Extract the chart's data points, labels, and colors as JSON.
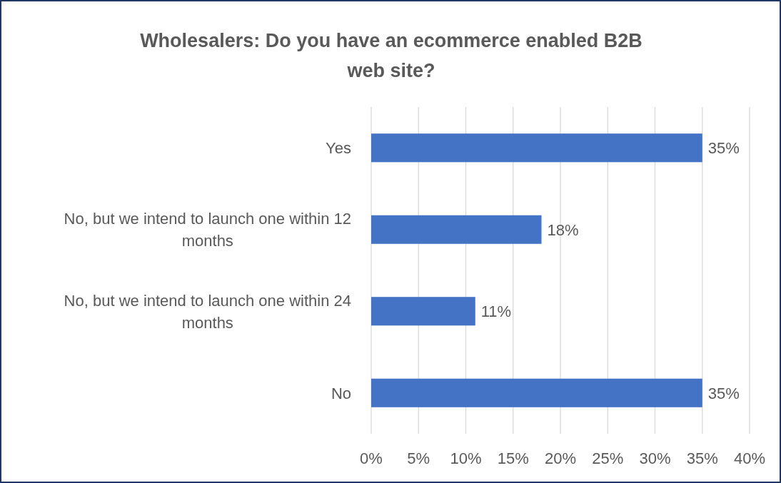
{
  "chart_data": {
    "type": "bar",
    "orientation": "horizontal",
    "title": "Wholesalers: Do you have an ecommerce enabled B2B web site?",
    "categories": [
      "Yes",
      "No, but we intend to launch one within 12 months",
      "No, but we intend to launch one within 24 months",
      "No"
    ],
    "values": [
      35,
      18,
      11,
      35
    ],
    "value_labels": [
      "35%",
      "18%",
      "11%",
      "35%"
    ],
    "color": "#4472c4",
    "xlim": [
      0,
      40
    ],
    "xticks": [
      {
        "value": 0,
        "label": "0%"
      },
      {
        "value": 5,
        "label": "5%"
      },
      {
        "value": 10,
        "label": "10%"
      },
      {
        "value": 15,
        "label": "15%"
      },
      {
        "value": 20,
        "label": "20%"
      },
      {
        "value": 25,
        "label": "25%"
      },
      {
        "value": 30,
        "label": "30%"
      },
      {
        "value": 35,
        "label": "35%"
      },
      {
        "value": 40,
        "label": "40%"
      }
    ],
    "grid": "x"
  }
}
